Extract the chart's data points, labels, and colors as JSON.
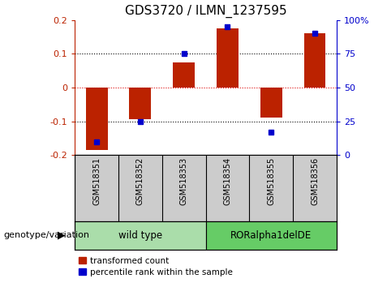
{
  "title": "GDS3720 / ILMN_1237595",
  "samples": [
    "GSM518351",
    "GSM518352",
    "GSM518353",
    "GSM518354",
    "GSM518355",
    "GSM518356"
  ],
  "red_values": [
    -0.185,
    -0.095,
    0.075,
    0.175,
    -0.09,
    0.16
  ],
  "blue_pct": [
    10,
    25,
    75,
    95,
    17,
    90
  ],
  "ylim_left": [
    -0.2,
    0.2
  ],
  "ylim_right": [
    0,
    100
  ],
  "yticks_left": [
    -0.2,
    -0.1,
    0,
    0.1,
    0.2
  ],
  "yticks_right": [
    0,
    25,
    50,
    75,
    100
  ],
  "ytick_labels_right": [
    "0",
    "25",
    "50",
    "75",
    "100%"
  ],
  "red_color": "#bb2200",
  "blue_color": "#0000cc",
  "bar_width": 0.5,
  "groups": [
    {
      "label": "wild type",
      "indices": [
        0,
        1,
        2
      ],
      "color": "#aaddaa"
    },
    {
      "label": "RORalpha1delDE",
      "indices": [
        3,
        4,
        5
      ],
      "color": "#66cc66"
    }
  ],
  "genotype_label": "genotype/variation",
  "legend_red": "transformed count",
  "legend_blue": "percentile rank within the sample",
  "hline_color": "#dd0000",
  "grid_color": "#000000",
  "bg_color": "#ffffff",
  "plot_bg": "#ffffff",
  "tick_label_area_color": "#cccccc"
}
